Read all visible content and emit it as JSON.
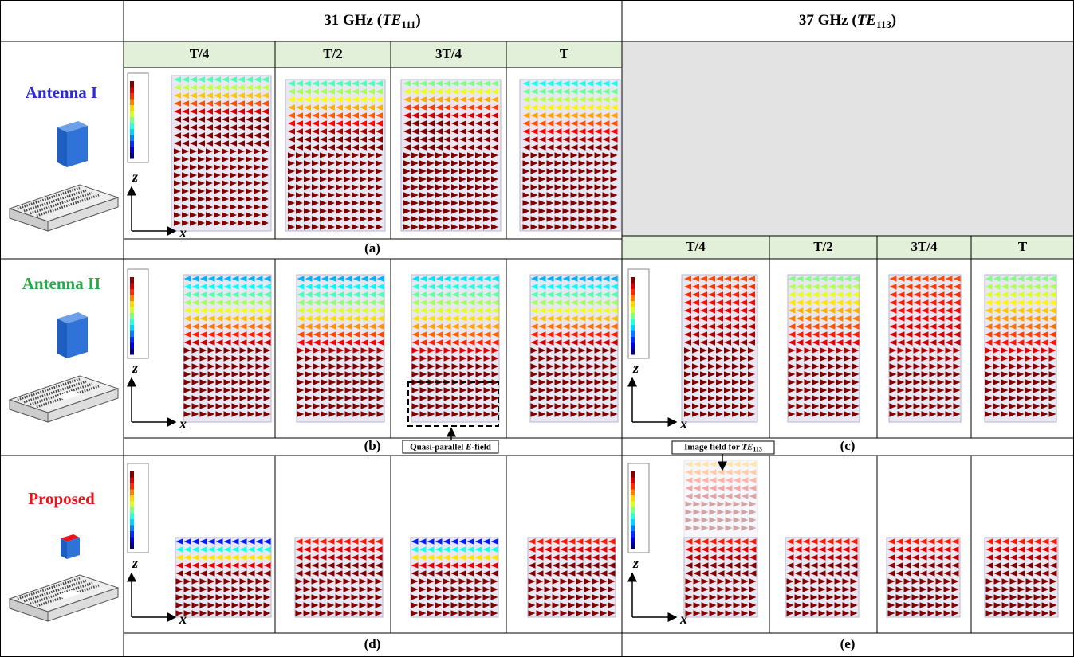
{
  "header": {
    "columns": [
      {
        "prefix": "31 GHz (",
        "mode": "TE",
        "index": "111",
        "suffix": ")"
      },
      {
        "prefix": "37 GHz (",
        "mode": "TE",
        "index": "113",
        "suffix": ")"
      }
    ]
  },
  "phases": [
    "T/4",
    "T/2",
    "3T/4",
    "T"
  ],
  "rows": [
    {
      "label": "Antenna I",
      "color": "#2b2bd6",
      "captions": [
        "(a)"
      ]
    },
    {
      "label": "Antenna II",
      "color": "#2aa84a",
      "captions": [
        "(b)",
        "(c)"
      ]
    },
    {
      "label": "Proposed",
      "color": "#e8141e",
      "captions": [
        "(d)",
        "(e)"
      ]
    }
  ],
  "axes": {
    "z": "z",
    "x": "x"
  },
  "annotations": [
    {
      "prefix": "Quasi-parallel ",
      "italic": "E",
      "suffix": "-field"
    },
    {
      "prefix": "Image field for ",
      "mode": "TE",
      "index": "113"
    }
  ]
}
